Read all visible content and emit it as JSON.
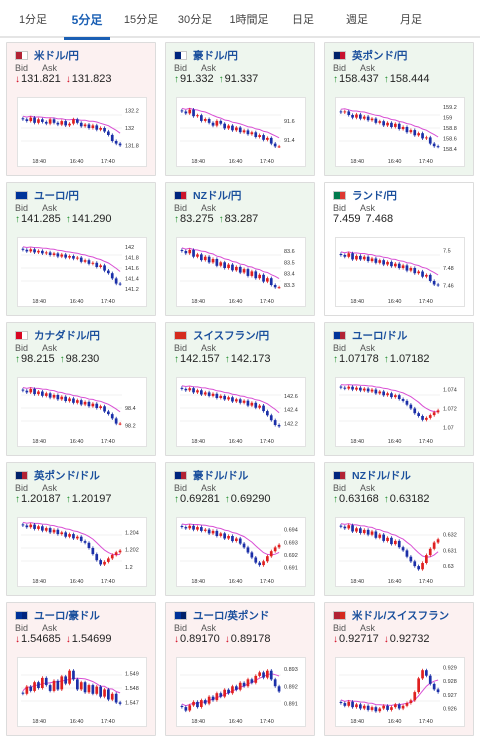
{
  "tabs": [
    {
      "label": "1分足",
      "active": false
    },
    {
      "label": "5分足",
      "active": true
    },
    {
      "label": "15分足",
      "active": false
    },
    {
      "label": "30分足",
      "active": false
    },
    {
      "label": "1時間足",
      "active": false
    },
    {
      "label": "日足",
      "active": false
    },
    {
      "label": "週足",
      "active": false
    },
    {
      "label": "月足",
      "active": false
    }
  ],
  "labels": {
    "bid": "Bid",
    "ask": "Ask"
  },
  "colors": {
    "up_bg": "#eef6ee",
    "down_bg": "#fcf1f1",
    "up_arrow": "#1e8c2a",
    "down_arrow": "#d0021b",
    "candle_up": "#e02020",
    "candle_down": "#1b2fa8",
    "ma_line": "#d94fd4",
    "title_blue": "#1a4f9c",
    "tab_active": "#1a5fb4"
  },
  "cards": [
    {
      "name": "米ドル/円",
      "state": "down",
      "direction": "down",
      "bid": "131.821",
      "ask": "131.823",
      "flag": [
        "#b22234",
        "#ffffff"
      ],
      "chart_data": {
        "type": "candlestick",
        "x_ticks": [
          "18:40",
          "16:40",
          "17:40"
        ],
        "y_ticks": [
          "132.2",
          "132",
          "131.8"
        ],
        "ylim": [
          131.7,
          132.3
        ],
        "closes": [
          132.1,
          132.08,
          132.12,
          132.06,
          132.1,
          132.07,
          132.05,
          132.1,
          132.06,
          132.04,
          132.08,
          132.03,
          132.05,
          132.1,
          132.06,
          132.02,
          132.04,
          132.0,
          132.03,
          131.98,
          132.0,
          131.96,
          131.92,
          131.85,
          131.82,
          131.8
        ]
      }
    },
    {
      "name": "豪ドル/円",
      "state": "up",
      "direction": "up",
      "bid": "91.332",
      "ask": "91.337",
      "flag": [
        "#00247d",
        "#ffffff"
      ],
      "chart_data": {
        "type": "candlestick",
        "x_ticks": [
          "18:40",
          "16:40",
          "17:40"
        ],
        "y_ticks": [
          "91.6",
          "91.4"
        ],
        "ylim": [
          91.25,
          91.8
        ],
        "closes": [
          91.7,
          91.68,
          91.72,
          91.65,
          91.66,
          91.6,
          91.62,
          91.58,
          91.55,
          91.6,
          91.57,
          91.52,
          91.55,
          91.5,
          91.53,
          91.48,
          91.5,
          91.46,
          91.48,
          91.43,
          91.45,
          91.4,
          91.42,
          91.36,
          91.33,
          91.33
        ]
      }
    },
    {
      "name": "英ポンド/円",
      "state": "up",
      "direction": "up",
      "bid": "158.437",
      "ask": "158.444",
      "flag": [
        "#012169",
        "#c8102e"
      ],
      "chart_data": {
        "type": "candlestick",
        "x_ticks": [
          "18:40",
          "16:40",
          "17:40"
        ],
        "y_ticks": [
          "159.2",
          "159",
          "158.8",
          "158.6",
          "158.4"
        ],
        "ylim": [
          158.3,
          159.3
        ],
        "closes": [
          159.1,
          159.12,
          159.05,
          159.0,
          159.06,
          158.98,
          159.02,
          158.95,
          158.98,
          158.9,
          158.93,
          158.85,
          158.9,
          158.82,
          158.88,
          158.78,
          158.82,
          158.72,
          158.76,
          158.66,
          158.7,
          158.6,
          158.62,
          158.5,
          158.45,
          158.44
        ]
      }
    },
    {
      "name": "ユーロ/円",
      "state": "up",
      "direction": "up",
      "bid": "141.285",
      "ask": "141.290",
      "flag": [
        "#003399",
        "#003399"
      ],
      "chart_data": {
        "type": "candlestick",
        "x_ticks": [
          "18:40",
          "16:40",
          "17:40"
        ],
        "y_ticks": [
          "142",
          "141.8",
          "141.6",
          "141.4",
          "141.2"
        ],
        "ylim": [
          141.1,
          142.1
        ],
        "closes": [
          141.95,
          141.92,
          141.96,
          141.9,
          141.93,
          141.88,
          141.9,
          141.85,
          141.88,
          141.82,
          141.86,
          141.8,
          141.83,
          141.78,
          141.8,
          141.72,
          141.75,
          141.68,
          141.7,
          141.62,
          141.65,
          141.55,
          141.5,
          141.4,
          141.3,
          141.29
        ]
      }
    },
    {
      "name": "NZドル/円",
      "state": "up",
      "direction": "up",
      "bid": "83.275",
      "ask": "83.287",
      "flag": [
        "#00247d",
        "#cc142b"
      ],
      "chart_data": {
        "type": "candlestick",
        "x_ticks": [
          "18:40",
          "16:40",
          "17:40"
        ],
        "y_ticks": [
          "83.6",
          "83.5",
          "83.4",
          "83.3"
        ],
        "ylim": [
          83.22,
          83.68
        ],
        "closes": [
          83.6,
          83.58,
          83.61,
          83.55,
          83.57,
          83.52,
          83.55,
          83.5,
          83.53,
          83.47,
          83.5,
          83.45,
          83.48,
          83.43,
          83.46,
          83.41,
          83.44,
          83.38,
          83.42,
          83.36,
          83.39,
          83.33,
          83.36,
          83.3,
          83.28,
          83.28
        ]
      }
    },
    {
      "name": "ランド/円",
      "state": "neutral",
      "direction": "none",
      "bid": "7.459",
      "ask": "7.468",
      "flag": [
        "#007a4d",
        "#de3831"
      ],
      "chart_data": {
        "type": "candlestick",
        "x_ticks": [
          "18:40",
          "16:40",
          "17:40"
        ],
        "y_ticks": [
          "7.5",
          "7.48",
          "7.46"
        ],
        "ylim": [
          7.45,
          7.51
        ],
        "closes": [
          7.495,
          7.493,
          7.497,
          7.49,
          7.494,
          7.49,
          7.493,
          7.488,
          7.491,
          7.486,
          7.489,
          7.484,
          7.487,
          7.482,
          7.485,
          7.48,
          7.483,
          7.477,
          7.48,
          7.474,
          7.476,
          7.47,
          7.472,
          7.465,
          7.461,
          7.46
        ]
      }
    },
    {
      "name": "カナダドル/円",
      "state": "up",
      "direction": "up",
      "bid": "98.215",
      "ask": "98.230",
      "flag": [
        "#d80621",
        "#ffffff"
      ],
      "chart_data": {
        "type": "candlestick",
        "x_ticks": [
          "18:40",
          "16:40",
          "17:40"
        ],
        "y_ticks": [
          "98.4",
          "98.2"
        ],
        "ylim": [
          98.1,
          98.7
        ],
        "closes": [
          98.6,
          98.58,
          98.62,
          98.56,
          98.59,
          98.54,
          98.57,
          98.52,
          98.55,
          98.5,
          98.53,
          98.48,
          98.51,
          98.46,
          98.49,
          98.44,
          98.47,
          98.42,
          98.45,
          98.4,
          98.42,
          98.36,
          98.33,
          98.28,
          98.22,
          98.22
        ]
      }
    },
    {
      "name": "スイスフラン/円",
      "state": "up",
      "direction": "up",
      "bid": "142.157",
      "ask": "142.173",
      "flag": [
        "#d52b1e",
        "#d52b1e"
      ],
      "chart_data": {
        "type": "candlestick",
        "x_ticks": [
          "18:40",
          "16:40",
          "17:40"
        ],
        "y_ticks": [
          "142.6",
          "142.4",
          "142.2"
        ],
        "ylim": [
          142.05,
          142.8
        ],
        "closes": [
          142.7,
          142.68,
          142.71,
          142.65,
          142.68,
          142.62,
          142.65,
          142.6,
          142.63,
          142.57,
          142.6,
          142.55,
          142.58,
          142.52,
          142.55,
          142.5,
          142.53,
          142.46,
          142.5,
          142.43,
          142.46,
          142.38,
          142.32,
          142.25,
          142.18,
          142.16
        ]
      }
    },
    {
      "name": "ユーロ/ドル",
      "state": "up",
      "direction": "up",
      "bid": "1.07178",
      "ask": "1.07182",
      "flag": [
        "#003399",
        "#b22234"
      ],
      "chart_data": {
        "type": "candlestick",
        "x_ticks": [
          "18:40",
          "16:40",
          "17:40"
        ],
        "y_ticks": [
          "1.074",
          "1.072",
          "1.07"
        ],
        "ylim": [
          1.0693,
          1.0748
        ],
        "closes": [
          1.0742,
          1.0741,
          1.0743,
          1.074,
          1.0742,
          1.0739,
          1.0741,
          1.0738,
          1.074,
          1.0736,
          1.0738,
          1.0734,
          1.0736,
          1.0732,
          1.0734,
          1.073,
          1.0728,
          1.0724,
          1.072,
          1.0715,
          1.0712,
          1.0708,
          1.071,
          1.0713,
          1.0716,
          1.0718
        ]
      }
    },
    {
      "name": "英ポンド/ドル",
      "state": "up",
      "direction": "up",
      "bid": "1.20187",
      "ask": "1.20197",
      "flag": [
        "#012169",
        "#b22234"
      ],
      "chart_data": {
        "type": "candlestick",
        "x_ticks": [
          "18:40",
          "16:40",
          "17:40"
        ],
        "y_ticks": [
          "1.204",
          "1.202",
          "1.2"
        ],
        "ylim": [
          1.1992,
          1.2052
        ],
        "closes": [
          1.2048,
          1.2046,
          1.2049,
          1.2044,
          1.2047,
          1.2042,
          1.2045,
          1.204,
          1.2043,
          1.2038,
          1.204,
          1.2035,
          1.2038,
          1.2033,
          1.2035,
          1.203,
          1.2028,
          1.2022,
          1.2015,
          1.2008,
          1.2003,
          1.2006,
          1.201,
          1.2014,
          1.2017,
          1.2019
        ]
      }
    },
    {
      "name": "豪ドル/ドル",
      "state": "up",
      "direction": "up",
      "bid": "0.69281",
      "ask": "0.69290",
      "flag": [
        "#00247d",
        "#b22234"
      ],
      "chart_data": {
        "type": "candlestick",
        "x_ticks": [
          "18:40",
          "16:40",
          "17:40"
        ],
        "y_ticks": [
          "0.694",
          "0.693",
          "0.692",
          "0.691"
        ],
        "ylim": [
          0.6905,
          0.6946
        ],
        "closes": [
          0.6942,
          0.6941,
          0.6943,
          0.694,
          0.6942,
          0.6939,
          0.694,
          0.6937,
          0.6939,
          0.6935,
          0.6937,
          0.6933,
          0.6935,
          0.6931,
          0.6933,
          0.6929,
          0.6926,
          0.6922,
          0.6918,
          0.6914,
          0.6912,
          0.6915,
          0.6919,
          0.6923,
          0.6926,
          0.6928
        ]
      }
    },
    {
      "name": "NZドル/ドル",
      "state": "up",
      "direction": "up",
      "bid": "0.63168",
      "ask": "0.63182",
      "flag": [
        "#00247d",
        "#b22234"
      ],
      "chart_data": {
        "type": "candlestick",
        "x_ticks": [
          "18:40",
          "16:40",
          "17:40"
        ],
        "y_ticks": [
          "0.632",
          "0.631",
          "0.63"
        ],
        "ylim": [
          0.6295,
          0.6328
        ],
        "closes": [
          0.6325,
          0.6324,
          0.6326,
          0.6322,
          0.6324,
          0.6321,
          0.6323,
          0.632,
          0.6322,
          0.6318,
          0.632,
          0.6316,
          0.6318,
          0.6314,
          0.6316,
          0.6312,
          0.631,
          0.6306,
          0.6303,
          0.63,
          0.6298,
          0.6302,
          0.6307,
          0.6311,
          0.6315,
          0.6317
        ]
      }
    },
    {
      "name": "ユーロ/豪ドル",
      "state": "down",
      "direction": "down",
      "bid": "1.54685",
      "ask": "1.54699",
      "flag": [
        "#003399",
        "#00247d"
      ],
      "chart_data": {
        "type": "candlestick",
        "x_ticks": [
          "18:40",
          "16:40",
          "17:40"
        ],
        "y_ticks": [
          "1.549",
          "1.548",
          "1.547"
        ],
        "ylim": [
          1.5462,
          1.5498
        ],
        "closes": [
          1.5476,
          1.5481,
          1.5478,
          1.5484,
          1.548,
          1.5487,
          1.5482,
          1.5478,
          1.5485,
          1.5479,
          1.5488,
          1.5483,
          1.5492,
          1.5486,
          1.5479,
          1.5484,
          1.5477,
          1.5482,
          1.5476,
          1.5481,
          1.5474,
          1.5479,
          1.5472,
          1.5476,
          1.547,
          1.5469
        ]
      }
    },
    {
      "name": "ユーロ/英ポンド",
      "state": "down",
      "direction": "down",
      "bid": "0.89170",
      "ask": "0.89178",
      "flag": [
        "#003399",
        "#012169"
      ],
      "chart_data": {
        "type": "candlestick",
        "x_ticks": [
          "18:40",
          "16:40",
          "17:40"
        ],
        "y_ticks": [
          "0.893",
          "0.892",
          "0.891"
        ],
        "ylim": [
          0.8904,
          0.8934
        ],
        "closes": [
          0.8908,
          0.8906,
          0.8909,
          0.8911,
          0.8908,
          0.8912,
          0.891,
          0.8914,
          0.8912,
          0.8916,
          0.8914,
          0.8918,
          0.8916,
          0.892,
          0.8918,
          0.8922,
          0.892,
          0.8924,
          0.8922,
          0.8926,
          0.8928,
          0.8925,
          0.8929,
          0.8924,
          0.892,
          0.8917
        ]
      }
    },
    {
      "name": "米ドル/スイスフラン",
      "state": "down",
      "direction": "down",
      "bid": "0.92717",
      "ask": "0.92732",
      "flag": [
        "#b22234",
        "#d52b1e"
      ],
      "chart_data": {
        "type": "candlestick",
        "x_ticks": [
          "18:40",
          "16:40",
          "17:40"
        ],
        "y_ticks": [
          "0.929",
          "0.928",
          "0.927",
          "0.926"
        ],
        "ylim": [
          0.9256,
          0.9294
        ],
        "closes": [
          0.9264,
          0.9262,
          0.9265,
          0.9261,
          0.9263,
          0.926,
          0.9262,
          0.9259,
          0.9261,
          0.9258,
          0.926,
          0.9262,
          0.9259,
          0.9261,
          0.9263,
          0.926,
          0.9262,
          0.9264,
          0.9266,
          0.9272,
          0.9282,
          0.9288,
          0.9284,
          0.9278,
          0.9274,
          0.9272
        ]
      }
    }
  ]
}
